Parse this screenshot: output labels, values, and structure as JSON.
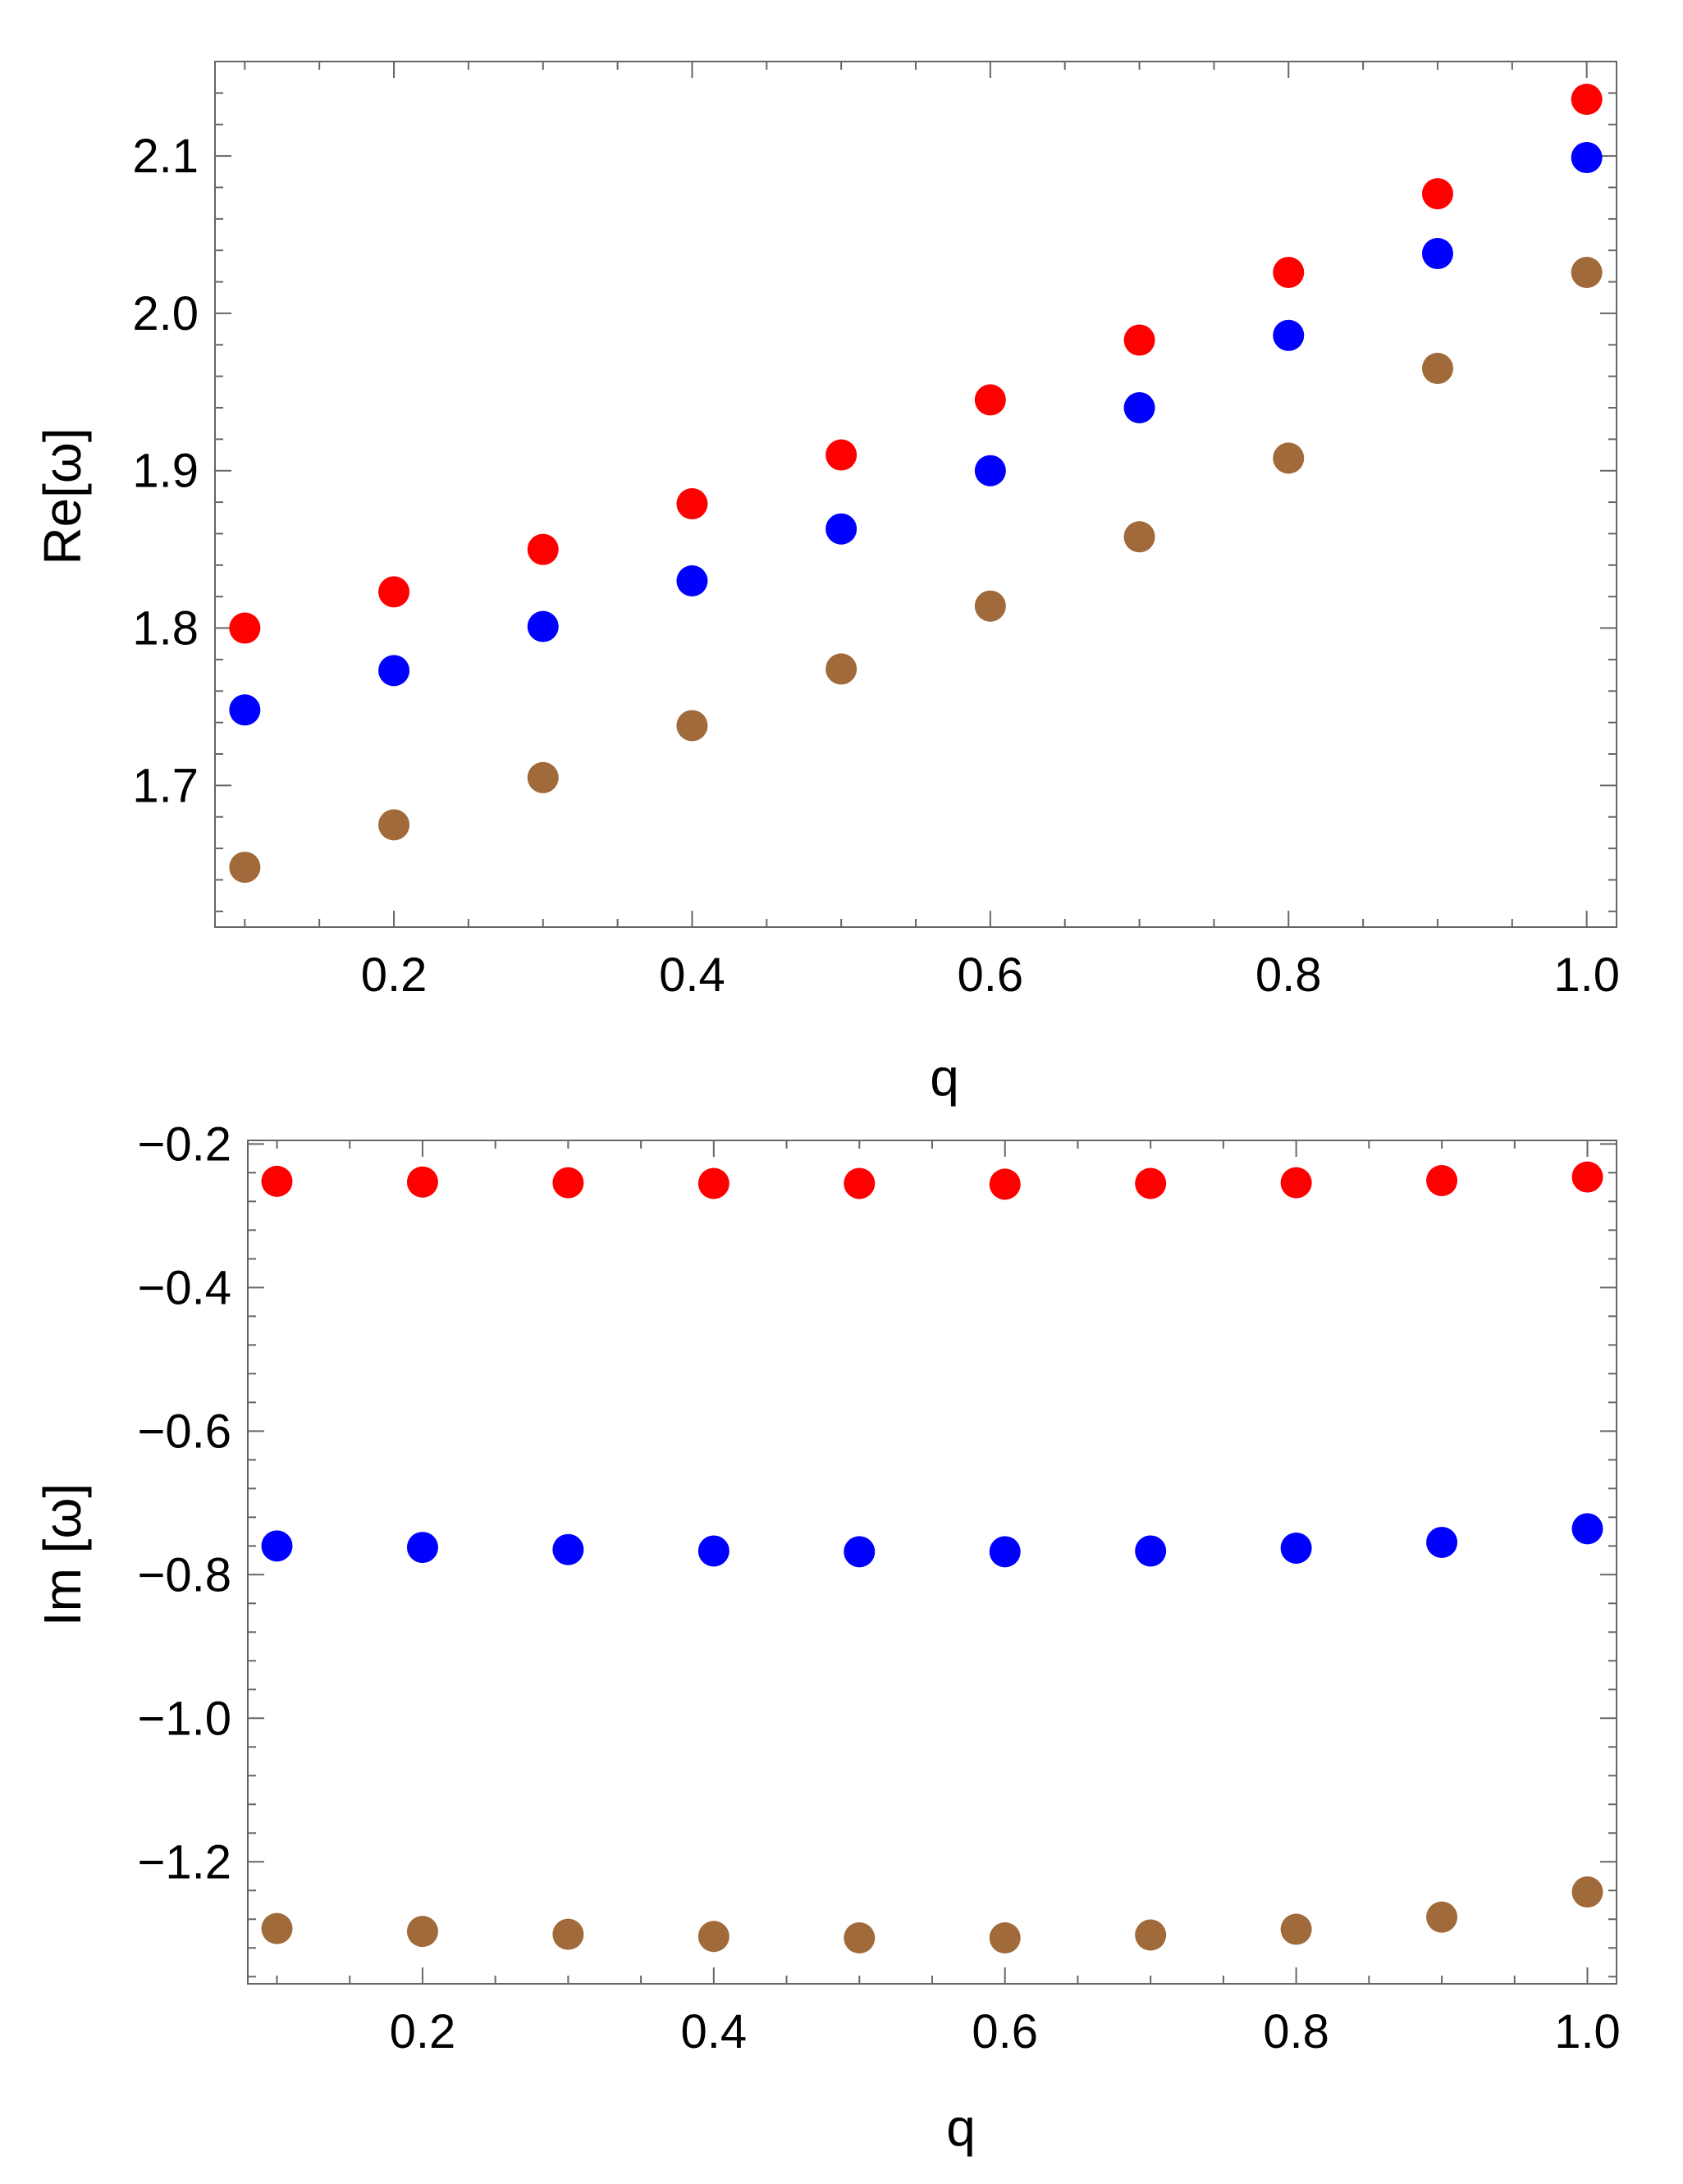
{
  "colors": {
    "red": "#ff0000",
    "blue": "#0000ff",
    "brown": "#a06a3a",
    "frame": "#666666",
    "text": "#000000"
  },
  "chart_data": [
    {
      "type": "scatter",
      "xlabel": "q",
      "ylabel": "Re[ω]",
      "xlim": [
        0.08,
        1.02
      ],
      "ylim": [
        1.61,
        2.16
      ],
      "xticks": [
        0.2,
        0.4,
        0.6,
        0.8,
        1.0
      ],
      "xtick_labels": [
        "0.2",
        "0.4",
        "0.6",
        "0.8",
        "1.0"
      ],
      "yticks": [
        1.7,
        1.8,
        1.9,
        2.0,
        2.1
      ],
      "ytick_labels": [
        "1.7",
        "1.8",
        "1.9",
        "2.0",
        "2.1"
      ],
      "grid": false,
      "x": [
        0.1,
        0.2,
        0.3,
        0.4,
        0.5,
        0.6,
        0.7,
        0.8,
        0.9,
        1.0
      ],
      "series": [
        {
          "color": "red",
          "values": [
            1.8,
            1.823,
            1.85,
            1.879,
            1.91,
            1.945,
            1.983,
            2.026,
            2.076,
            2.136
          ]
        },
        {
          "color": "blue",
          "values": [
            1.748,
            1.773,
            1.801,
            1.83,
            1.863,
            1.9,
            1.94,
            1.986,
            2.038,
            2.099
          ]
        },
        {
          "color": "brown",
          "values": [
            1.648,
            1.675,
            1.705,
            1.738,
            1.774,
            1.814,
            1.858,
            1.908,
            1.965,
            2.026
          ]
        }
      ]
    },
    {
      "type": "scatter",
      "xlabel": "q",
      "ylabel": "Im [ω]",
      "xlim": [
        0.08,
        1.02
      ],
      "ylim": [
        -1.37,
        -0.195
      ],
      "xticks": [
        0.2,
        0.4,
        0.6,
        0.8,
        1.0
      ],
      "xtick_labels": [
        "0.2",
        "0.4",
        "0.6",
        "0.8",
        "1.0"
      ],
      "yticks": [
        -1.2,
        -1.0,
        -0.8,
        -0.6,
        -0.4,
        -0.2
      ],
      "ytick_labels": [
        "−1.2",
        "−1.0",
        "−0.8",
        "−0.6",
        "−0.4",
        "−0.2"
      ],
      "grid": false,
      "x": [
        0.1,
        0.2,
        0.3,
        0.4,
        0.5,
        0.6,
        0.7,
        0.8,
        0.9,
        1.0
      ],
      "series": [
        {
          "color": "red",
          "values": [
            -0.252,
            -0.253,
            -0.254,
            -0.255,
            -0.255,
            -0.256,
            -0.255,
            -0.254,
            -0.251,
            -0.246
          ]
        },
        {
          "color": "blue",
          "values": [
            -0.76,
            -0.762,
            -0.765,
            -0.767,
            -0.768,
            -0.768,
            -0.767,
            -0.763,
            -0.755,
            -0.736
          ]
        },
        {
          "color": "brown",
          "values": [
            -1.293,
            -1.297,
            -1.301,
            -1.304,
            -1.306,
            -1.306,
            -1.302,
            -1.294,
            -1.277,
            -1.242
          ]
        }
      ]
    }
  ]
}
